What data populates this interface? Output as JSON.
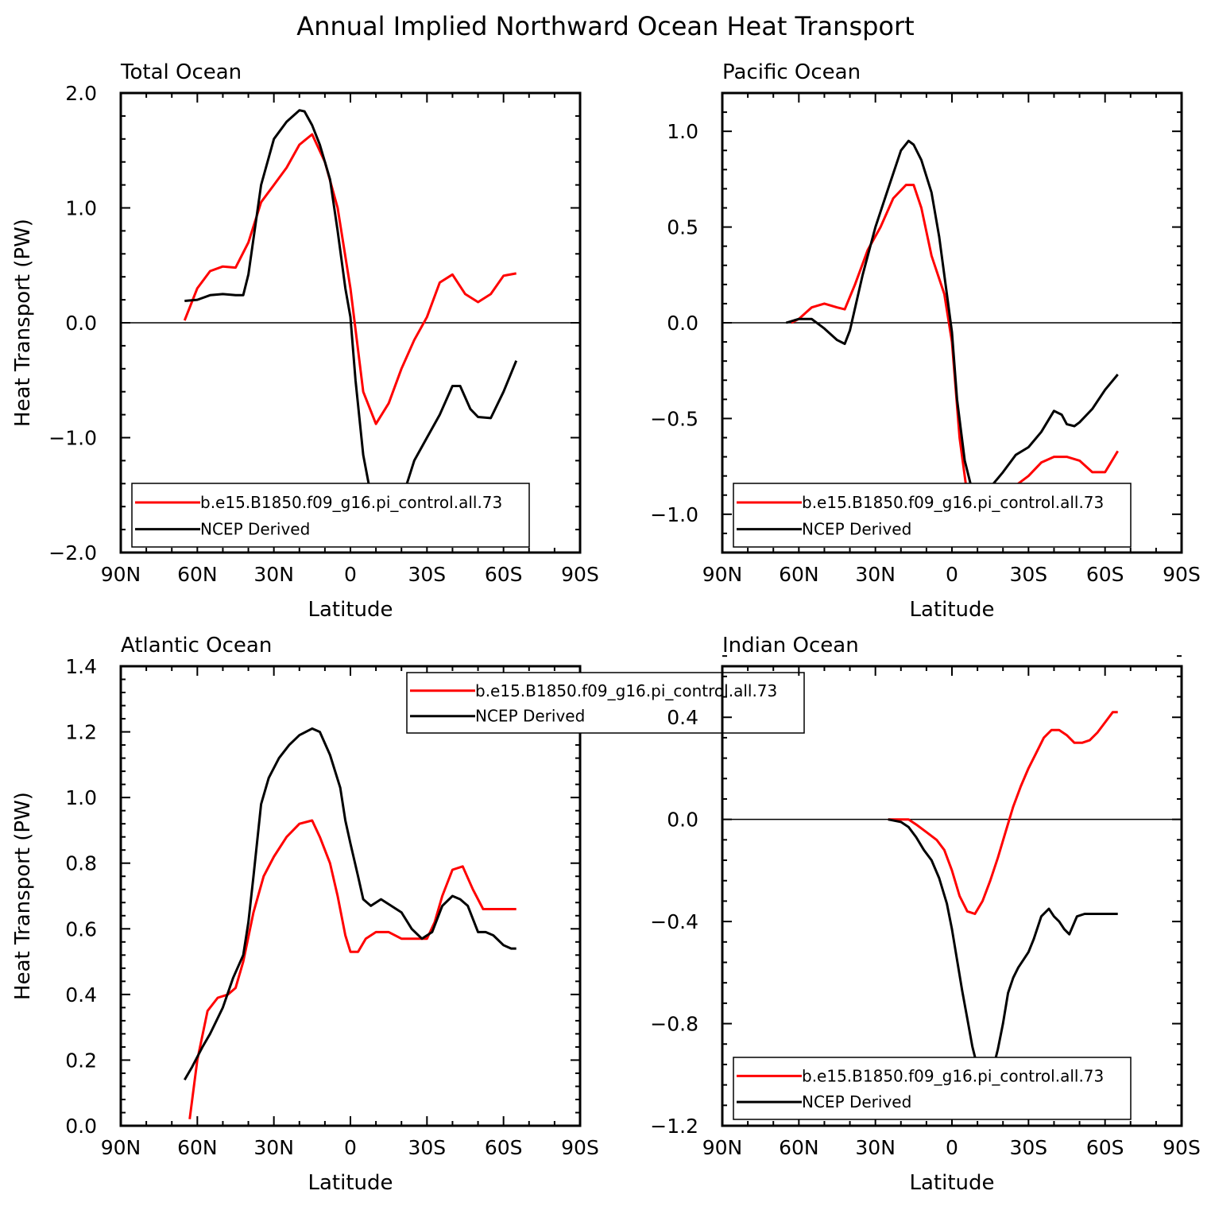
{
  "figure_title": "Annual Implied Northward Ocean Heat Transport",
  "colors": {
    "model": "#ff0000",
    "obs": "#000000",
    "axis": "#000000"
  },
  "chart_data": [
    {
      "type": "line",
      "title": "Total Ocean",
      "xlabel": "Latitude",
      "ylabel": "Heat Transport (PW)",
      "xlim": [
        90,
        -90
      ],
      "ylim": [
        -2.0,
        2.0
      ],
      "x_ticks": [
        90,
        60,
        30,
        0,
        -30,
        -60,
        -90
      ],
      "x_tick_labels": [
        "90N",
        "60N",
        "30N",
        "0",
        "30S",
        "60S",
        "90S"
      ],
      "y_ticks": [
        -2.0,
        -1.0,
        0.0,
        1.0,
        2.0
      ],
      "y_tick_labels": [
        "−2.0",
        "−1.0",
        "0.0",
        "1.0",
        "2.0"
      ],
      "zero_line": true,
      "legend": {
        "position": "bottom",
        "entries": [
          "b.e15.B1850.f09_g16.pi_control.all.73",
          "NCEP Derived"
        ]
      },
      "series": [
        {
          "name": "b.e15.B1850.f09_g16.pi_control.all.73",
          "color": "#ff0000",
          "x": [
            65,
            60,
            55,
            50,
            45,
            40,
            35,
            30,
            25,
            20,
            15,
            10,
            5,
            0,
            -5,
            -10,
            -15,
            -20,
            -25,
            -30,
            -35,
            -40,
            -45,
            -50,
            -55,
            -60,
            -65
          ],
          "y": [
            0.02,
            0.3,
            0.45,
            0.49,
            0.48,
            0.7,
            1.05,
            1.2,
            1.35,
            1.55,
            1.64,
            1.4,
            1.0,
            0.3,
            -0.6,
            -0.88,
            -0.7,
            -0.4,
            -0.15,
            0.05,
            0.35,
            0.42,
            0.25,
            0.18,
            0.25,
            0.41,
            0.43
          ]
        },
        {
          "name": "NCEP Derived",
          "color": "#000000",
          "x": [
            65,
            60,
            55,
            50,
            45,
            42,
            40,
            35,
            30,
            25,
            20,
            18,
            15,
            12,
            8,
            5,
            2,
            0,
            -2,
            -5,
            -8,
            -12,
            -15,
            -20,
            -25,
            -30,
            -35,
            -40,
            -43,
            -47,
            -50,
            -55,
            -60,
            -65
          ],
          "y": [
            0.19,
            0.2,
            0.24,
            0.25,
            0.24,
            0.24,
            0.42,
            1.2,
            1.6,
            1.75,
            1.85,
            1.84,
            1.72,
            1.55,
            1.25,
            0.8,
            0.3,
            0.05,
            -0.5,
            -1.15,
            -1.5,
            -1.65,
            -1.68,
            -1.55,
            -1.2,
            -1.0,
            -0.8,
            -0.55,
            -0.55,
            -0.75,
            -0.82,
            -0.83,
            -0.6,
            -0.33
          ]
        }
      ]
    },
    {
      "type": "line",
      "title": "Pacific Ocean",
      "xlabel": "Latitude",
      "ylabel": "",
      "xlim": [
        90,
        -90
      ],
      "ylim": [
        -1.2,
        1.2
      ],
      "x_ticks": [
        90,
        60,
        30,
        0,
        -30,
        -60,
        -90
      ],
      "x_tick_labels": [
        "90N",
        "60N",
        "30N",
        "0",
        "30S",
        "60S",
        "90S"
      ],
      "y_ticks": [
        -1.0,
        -0.5,
        0.0,
        0.5,
        1.0
      ],
      "y_tick_labels": [
        "−1.0",
        "−0.5",
        "0.0",
        "0.5",
        "1.0"
      ],
      "zero_line": true,
      "legend": {
        "position": "bottom",
        "entries": [
          "b.e15.B1850.f09_g16.pi_control.all.73",
          "NCEP Derived"
        ]
      },
      "series": [
        {
          "name": "b.e15.B1850.f09_g16.pi_control.all.73",
          "color": "#ff0000",
          "x": [
            63,
            60,
            55,
            50,
            45,
            42,
            38,
            33,
            28,
            23,
            18,
            15,
            12,
            8,
            3,
            0,
            -3,
            -6,
            -10,
            -15,
            -20,
            -25,
            -30,
            -35,
            -40,
            -45,
            -50,
            -55,
            -60,
            -65
          ],
          "y": [
            0.0,
            0.02,
            0.08,
            0.1,
            0.08,
            0.07,
            0.2,
            0.38,
            0.5,
            0.65,
            0.72,
            0.72,
            0.6,
            0.35,
            0.15,
            -0.1,
            -0.6,
            -0.9,
            -1.04,
            -1.02,
            -0.94,
            -0.85,
            -0.8,
            -0.73,
            -0.7,
            -0.7,
            -0.72,
            -0.78,
            -0.78,
            -0.67
          ]
        },
        {
          "name": "NCEP Derived",
          "color": "#000000",
          "x": [
            65,
            60,
            55,
            50,
            45,
            42,
            40,
            35,
            30,
            25,
            20,
            17,
            15,
            12,
            8,
            5,
            2,
            0,
            -2,
            -5,
            -8,
            -12,
            -15,
            -20,
            -25,
            -30,
            -35,
            -40,
            -43,
            -45,
            -48,
            -50,
            -55,
            -60,
            -65
          ],
          "y": [
            0.0,
            0.02,
            0.02,
            -0.03,
            -0.09,
            -0.11,
            -0.04,
            0.25,
            0.5,
            0.7,
            0.9,
            0.95,
            0.93,
            0.85,
            0.68,
            0.45,
            0.15,
            -0.05,
            -0.4,
            -0.72,
            -0.88,
            -0.92,
            -0.86,
            -0.78,
            -0.69,
            -0.65,
            -0.57,
            -0.46,
            -0.48,
            -0.53,
            -0.54,
            -0.52,
            -0.45,
            -0.35,
            -0.27
          ]
        }
      ]
    },
    {
      "type": "line",
      "title": "Atlantic Ocean",
      "xlabel": "Latitude",
      "ylabel": "Heat Transport (PW)",
      "xlim": [
        90,
        -90
      ],
      "ylim": [
        0.0,
        1.4
      ],
      "x_ticks": [
        90,
        60,
        30,
        0,
        -30,
        -60,
        -90
      ],
      "x_tick_labels": [
        "90N",
        "60N",
        "30N",
        "0",
        "30S",
        "60S",
        "90S"
      ],
      "y_ticks": [
        0.0,
        0.2,
        0.4,
        0.6,
        0.8,
        1.0,
        1.2,
        1.4
      ],
      "y_tick_labels": [
        "0.0",
        "0.2",
        "0.4",
        "0.6",
        "0.8",
        "1.0",
        "1.2",
        "1.4"
      ],
      "zero_line": false,
      "legend": {
        "position": "top-right",
        "entries": [
          "b.e15.B1850.f09_g16.pi_control.all.73",
          "NCEP Derived"
        ]
      },
      "series": [
        {
          "name": "b.e15.B1850.f09_g16.pi_control.all.73",
          "color": "#ff0000",
          "x": [
            63,
            60,
            56,
            52,
            48,
            45,
            42,
            38,
            34,
            30,
            25,
            20,
            15,
            12,
            8,
            5,
            2,
            0,
            -3,
            -6,
            -10,
            -15,
            -20,
            -25,
            -30,
            -33,
            -36,
            -40,
            -44,
            -48,
            -52,
            -56,
            -60,
            -65
          ],
          "y": [
            0.02,
            0.2,
            0.35,
            0.39,
            0.4,
            0.42,
            0.5,
            0.65,
            0.76,
            0.82,
            0.88,
            0.92,
            0.93,
            0.88,
            0.8,
            0.7,
            0.58,
            0.53,
            0.53,
            0.57,
            0.59,
            0.59,
            0.57,
            0.57,
            0.57,
            0.62,
            0.7,
            0.78,
            0.79,
            0.72,
            0.66,
            0.66,
            0.66,
            0.66
          ]
        },
        {
          "name": "NCEP Derived",
          "color": "#000000",
          "x": [
            65,
            62,
            58,
            55,
            50,
            46,
            42,
            40,
            38,
            35,
            32,
            28,
            24,
            20,
            15,
            12,
            8,
            4,
            2,
            0,
            -3,
            -5,
            -8,
            -12,
            -16,
            -20,
            -24,
            -28,
            -32,
            -36,
            -40,
            -43,
            -46,
            -50,
            -53,
            -56,
            -60,
            -63,
            -65
          ],
          "y": [
            0.14,
            0.18,
            0.24,
            0.28,
            0.36,
            0.45,
            0.52,
            0.62,
            0.76,
            0.98,
            1.06,
            1.12,
            1.16,
            1.19,
            1.21,
            1.2,
            1.13,
            1.03,
            0.93,
            0.86,
            0.76,
            0.69,
            0.67,
            0.69,
            0.67,
            0.65,
            0.6,
            0.57,
            0.59,
            0.67,
            0.7,
            0.69,
            0.67,
            0.59,
            0.59,
            0.58,
            0.55,
            0.54,
            0.54
          ]
        }
      ]
    },
    {
      "type": "line",
      "title": "Indian Ocean",
      "xlabel": "Latitude",
      "ylabel": "",
      "xlim": [
        90,
        -90
      ],
      "ylim": [
        -1.2,
        0.6
      ],
      "x_ticks": [
        90,
        60,
        30,
        0,
        -30,
        -60,
        -90
      ],
      "x_tick_labels": [
        "90N",
        "60N",
        "30N",
        "0",
        "30S",
        "60S",
        "90S"
      ],
      "y_ticks": [
        -1.2,
        -0.8,
        -0.4,
        0.0,
        0.4
      ],
      "y_tick_labels": [
        "−1.2",
        "−0.8",
        "−0.4",
        "0.0",
        "0.4"
      ],
      "zero_line": true,
      "legend": {
        "position": "bottom",
        "entries": [
          "b.e15.B1850.f09_g16.pi_control.all.73",
          "NCEP Derived"
        ]
      },
      "series": [
        {
          "name": "b.e15.B1850.f09_g16.pi_control.all.73",
          "color": "#ff0000",
          "x": [
            25,
            20,
            17,
            14,
            10,
            6,
            3,
            0,
            -3,
            -6,
            -9,
            -12,
            -15,
            -18,
            -21,
            -24,
            -27,
            -30,
            -33,
            -36,
            -39,
            -42,
            -45,
            -48,
            -51,
            -54,
            -57,
            -60,
            -63,
            -65
          ],
          "y": [
            0.0,
            0.0,
            0.0,
            -0.02,
            -0.05,
            -0.08,
            -0.12,
            -0.2,
            -0.3,
            -0.36,
            -0.37,
            -0.32,
            -0.24,
            -0.15,
            -0.05,
            0.05,
            0.13,
            0.2,
            0.26,
            0.32,
            0.35,
            0.35,
            0.33,
            0.3,
            0.3,
            0.31,
            0.34,
            0.38,
            0.42,
            0.42
          ]
        },
        {
          "name": "NCEP Derived",
          "color": "#000000",
          "x": [
            25,
            20,
            17,
            14,
            11,
            8,
            5,
            2,
            0,
            -2,
            -4,
            -6,
            -8,
            -10,
            -12,
            -14,
            -16,
            -18,
            -20,
            -22,
            -24,
            -26,
            -28,
            -30,
            -32,
            -35,
            -38,
            -40,
            -42,
            -44,
            -46,
            -49,
            -52,
            -55,
            -58,
            -60,
            -62,
            -65
          ],
          "y": [
            0.0,
            -0.01,
            -0.03,
            -0.07,
            -0.12,
            -0.16,
            -0.23,
            -0.33,
            -0.43,
            -0.55,
            -0.67,
            -0.78,
            -0.89,
            -0.97,
            -1.05,
            -1.03,
            -0.98,
            -0.9,
            -0.8,
            -0.68,
            -0.62,
            -0.58,
            -0.55,
            -0.52,
            -0.47,
            -0.38,
            -0.35,
            -0.38,
            -0.4,
            -0.43,
            -0.45,
            -0.38,
            -0.37,
            -0.37,
            -0.37,
            -0.37,
            -0.37,
            -0.37
          ]
        }
      ]
    }
  ]
}
